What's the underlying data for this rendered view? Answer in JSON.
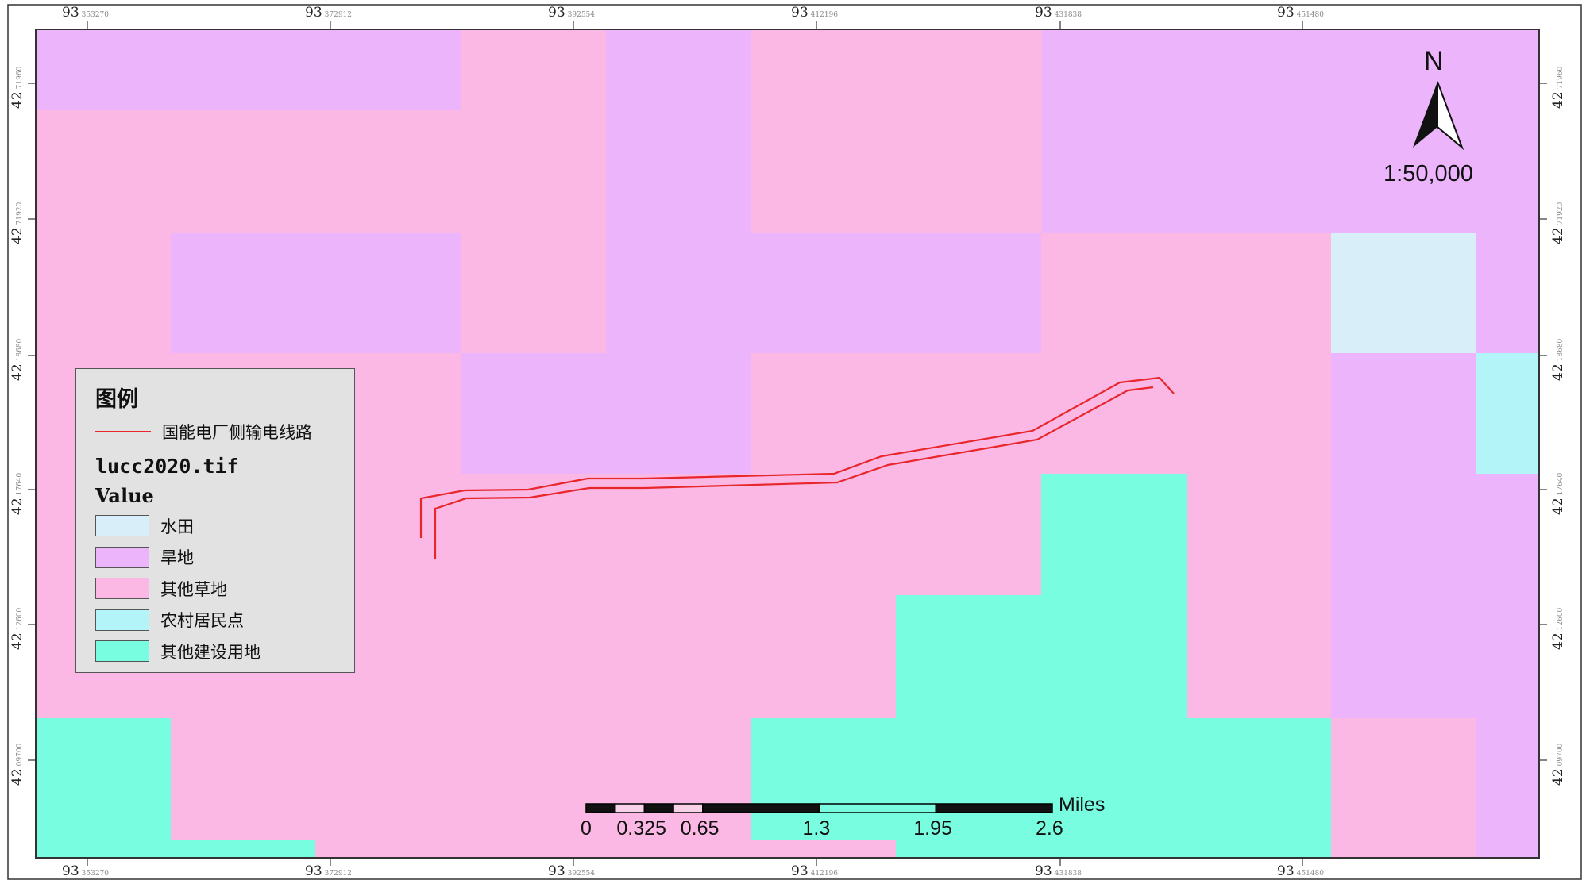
{
  "legend": {
    "title": "图例",
    "line_label": "国能电厂侧输电线路",
    "layer_name": "lucc2020.tif",
    "field": "Value",
    "classes": [
      {
        "label": "水田",
        "color": "#d8eef8"
      },
      {
        "label": "旱地",
        "color": "#ebb4fb"
      },
      {
        "label": "其他草地",
        "color": "#fbb8e4"
      },
      {
        "label": "农村居民点",
        "color": "#b2f4f8"
      },
      {
        "label": "其他建设用地",
        "color": "#78fde0"
      }
    ]
  },
  "colors": {
    "paddy": "#d8eef8",
    "dryland": "#ebb4fb",
    "grassland": "#fbb8e4",
    "settlement": "#b2f4f8",
    "construction": "#78fde0",
    "powerline": "#e8262b"
  },
  "north_arrow": {
    "label": "N",
    "icon": "north-arrow-icon"
  },
  "scale_ratio": "1:50,000",
  "scale_bar": {
    "unit": "Miles",
    "labels": [
      "0",
      "0.325",
      "0.65",
      "1.3",
      "1.95",
      "2.6"
    ]
  },
  "graticule": {
    "top": [
      {
        "deg": "93",
        "sec": "353270"
      },
      {
        "deg": "93",
        "sec": "372912"
      },
      {
        "deg": "93",
        "sec": "392554"
      },
      {
        "deg": "93",
        "sec": "412196"
      },
      {
        "deg": "93",
        "sec": "431838"
      },
      {
        "deg": "93",
        "sec": "451480"
      }
    ],
    "bottom": [
      {
        "deg": "93",
        "sec": "353270"
      },
      {
        "deg": "93",
        "sec": "372912"
      },
      {
        "deg": "93",
        "sec": "392554"
      },
      {
        "deg": "93",
        "sec": "412196"
      },
      {
        "deg": "93",
        "sec": "431838"
      },
      {
        "deg": "93",
        "sec": "451480"
      }
    ],
    "left": [
      {
        "deg": "42",
        "sec": "71960"
      },
      {
        "deg": "42",
        "sec": "71920"
      },
      {
        "deg": "42",
        "sec": "18680"
      },
      {
        "deg": "42",
        "sec": "17640"
      },
      {
        "deg": "42",
        "sec": "12600"
      },
      {
        "deg": "42",
        "sec": "09700"
      }
    ],
    "right": [
      {
        "deg": "42",
        "sec": "71960"
      },
      {
        "deg": "42",
        "sec": "71920"
      },
      {
        "deg": "42",
        "sec": "18680"
      },
      {
        "deg": "42",
        "sec": "17640"
      },
      {
        "deg": "42",
        "sec": "12600"
      },
      {
        "deg": "42",
        "sec": "09700"
      }
    ]
  }
}
